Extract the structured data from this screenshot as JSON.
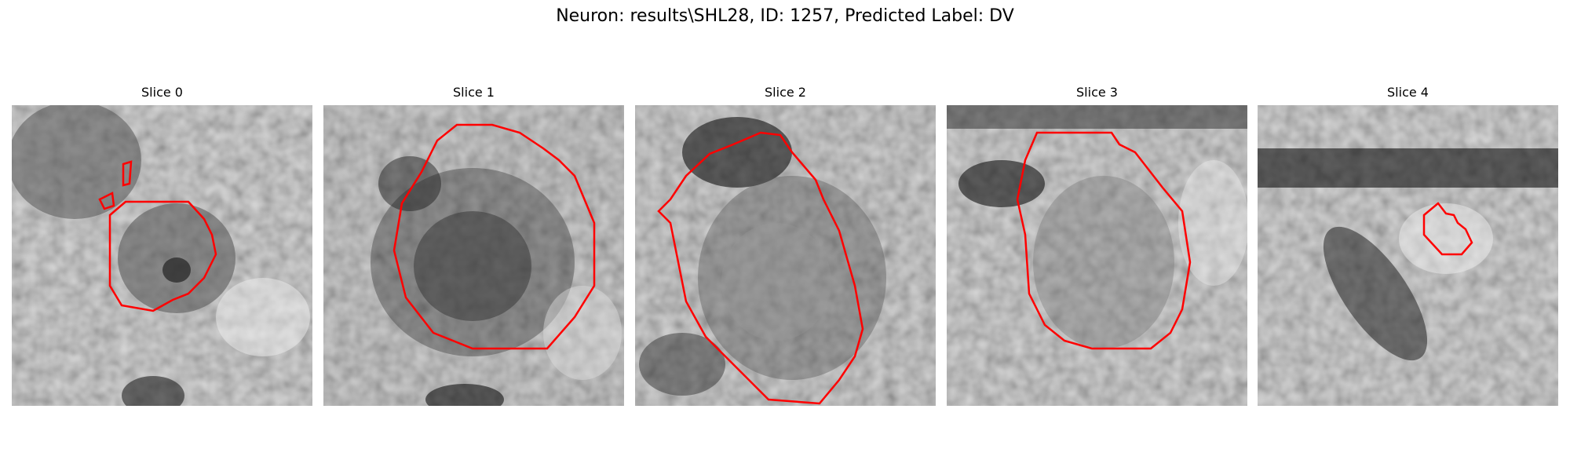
{
  "figure": {
    "title": "Neuron: results\\SHL28, ID: 1257, Predicted Label: DV"
  },
  "panels": [
    {
      "title": "Slice 0",
      "mask": "small dark cell with contour"
    },
    {
      "title": "Slice 1",
      "mask": "large round cell with contour"
    },
    {
      "title": "Slice 2",
      "mask": "large oval cell with contour"
    },
    {
      "title": "Slice 3",
      "mask": "medium cell with contour"
    },
    {
      "title": "Slice 4",
      "mask": "small contour"
    }
  ],
  "colors": {
    "contour": "#ff0000",
    "background": "#ffffff"
  }
}
